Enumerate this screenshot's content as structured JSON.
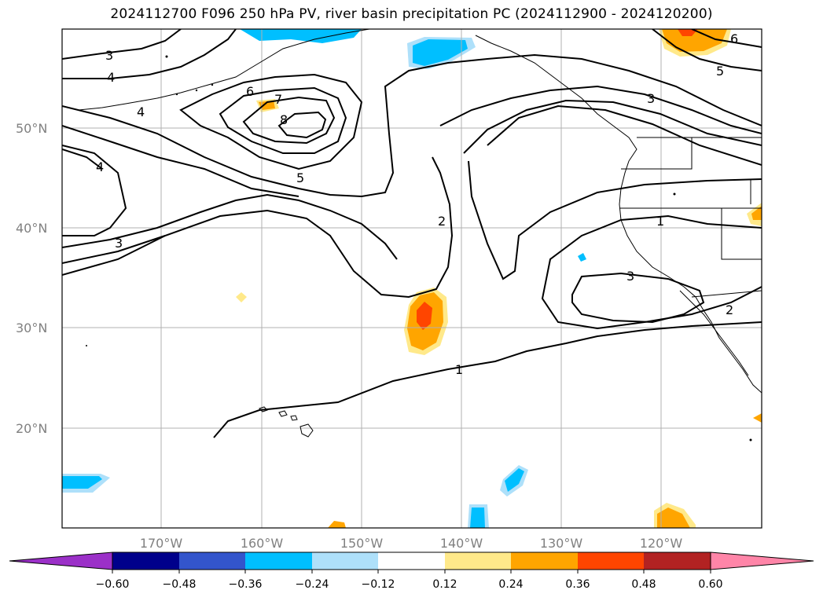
{
  "title": "2024112700 F096 250 hPa PV, river basin precipitation PC (2024112900 - 2024120200)",
  "map": {
    "lat_labels": [
      "50°N",
      "40°N",
      "30°N",
      "20°N"
    ],
    "lon_labels": [
      "170°W",
      "160°W",
      "150°W",
      "140°W",
      "130°W",
      "120°W"
    ],
    "pv_contour_labels": [
      "3",
      "4",
      "4",
      "4",
      "3",
      "6",
      "7",
      "8",
      "5",
      "2",
      "1",
      "1",
      "3",
      "3",
      "5",
      "6",
      "2"
    ]
  },
  "colorbar": {
    "ticks": [
      "−0.60",
      "−0.48",
      "−0.36",
      "−0.24",
      "−0.12",
      "0.12",
      "0.24",
      "0.36",
      "0.48",
      "0.60"
    ],
    "colors": {
      "under": "#9b30c8",
      "b1": "#00008b",
      "b2": "#3355cc",
      "b3": "#00bfff",
      "b4": "#aee0fa",
      "b5": "#ffffff",
      "b6": "#ffe98a",
      "b7": "#ffa500",
      "b8": "#ff4500",
      "b9": "#b22222",
      "over": "#ff85a8"
    }
  }
}
